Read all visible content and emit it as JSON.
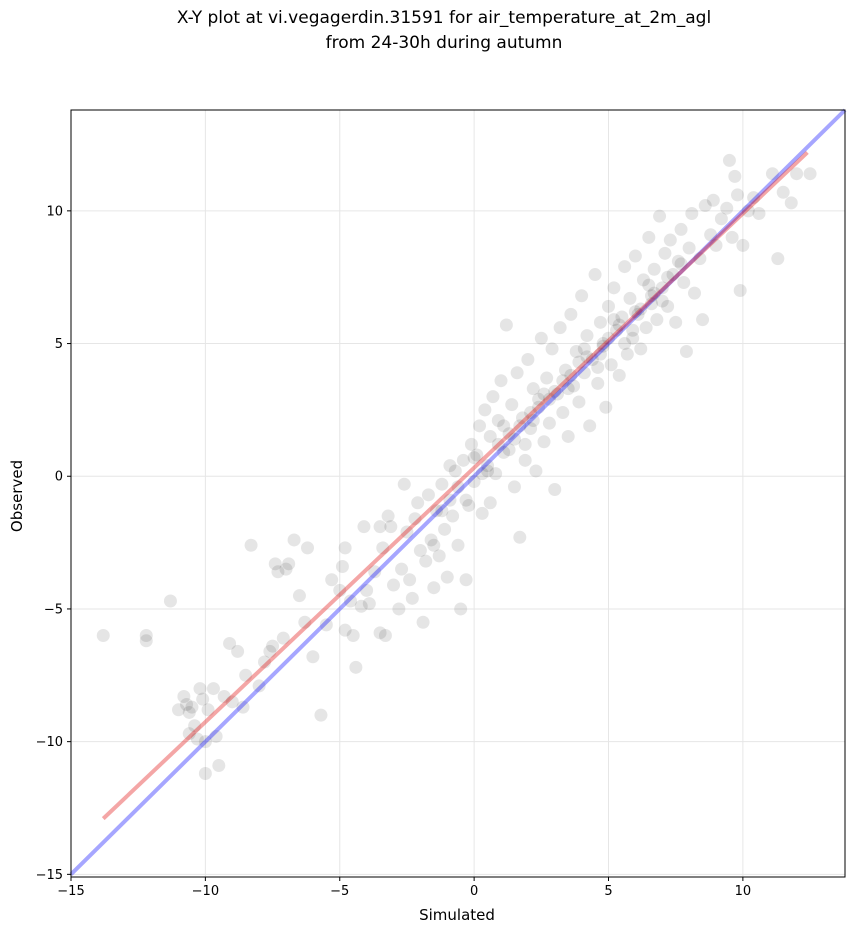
{
  "chart_data": {
    "type": "scatter",
    "title_line1": "X-Y plot at vi.vegagerdin.31591 for air_temperature_at_2m_agl",
    "title_line2": "from 24-30h during autumn",
    "xlabel": "Simulated",
    "ylabel": "Observed",
    "xlim": [
      -15,
      13.8
    ],
    "ylim": [
      -15.1,
      13.8
    ],
    "xticks": [
      -15,
      -10,
      -5,
      0,
      5,
      10
    ],
    "yticks": [
      -15,
      -10,
      -5,
      0,
      5,
      10
    ],
    "xtick_labels": [
      "−15",
      "−10",
      "−5",
      "0",
      "5",
      "10"
    ],
    "ytick_labels": [
      "−15",
      "−10",
      "−5",
      "0",
      "5",
      "10"
    ],
    "grid": true,
    "point_color": "#000000",
    "point_opacity": 0.1,
    "lines": [
      {
        "kind": "one-to-one",
        "color": "#0000ff",
        "opacity": 0.35,
        "x": [
          -15,
          13.8
        ],
        "y": [
          -15,
          13.8
        ]
      },
      {
        "kind": "regression",
        "color": "#e00000",
        "opacity": 0.35,
        "x": [
          -13.8,
          12.4
        ],
        "y": [
          -12.9,
          12.2
        ]
      }
    ],
    "points": [
      [
        -13.8,
        -6.0
      ],
      [
        -12.2,
        -6.0
      ],
      [
        -12.2,
        -6.2
      ],
      [
        -11.3,
        -4.7
      ],
      [
        -11.0,
        -8.8
      ],
      [
        -10.8,
        -8.3
      ],
      [
        -10.7,
        -8.6
      ],
      [
        -10.6,
        -8.9
      ],
      [
        -10.6,
        -9.7
      ],
      [
        -10.4,
        -9.4
      ],
      [
        -10.3,
        -9.9
      ],
      [
        -10.2,
        -8.0
      ],
      [
        -10.1,
        -8.4
      ],
      [
        -10.0,
        -11.2
      ],
      [
        -10.0,
        -10.0
      ],
      [
        -9.9,
        -8.8
      ],
      [
        -10.5,
        -8.7
      ],
      [
        -9.7,
        -8.0
      ],
      [
        -9.6,
        -9.8
      ],
      [
        -9.5,
        -10.9
      ],
      [
        -9.3,
        -8.3
      ],
      [
        -9.1,
        -6.3
      ],
      [
        -9.0,
        -8.5
      ],
      [
        -8.8,
        -6.6
      ],
      [
        -8.6,
        -8.7
      ],
      [
        -8.5,
        -7.5
      ],
      [
        -8.3,
        -2.6
      ],
      [
        -8.0,
        -7.9
      ],
      [
        -7.8,
        -7.0
      ],
      [
        -7.6,
        -6.6
      ],
      [
        -7.5,
        -6.4
      ],
      [
        -7.4,
        -3.3
      ],
      [
        -7.3,
        -3.6
      ],
      [
        -7.1,
        -6.1
      ],
      [
        -7.0,
        -3.5
      ],
      [
        -6.9,
        -3.3
      ],
      [
        -6.7,
        -2.4
      ],
      [
        -6.5,
        -4.5
      ],
      [
        -6.3,
        -5.5
      ],
      [
        -6.2,
        -2.7
      ],
      [
        -6.0,
        -6.8
      ],
      [
        -5.7,
        -9.0
      ],
      [
        -5.5,
        -5.6
      ],
      [
        -5.3,
        -3.9
      ],
      [
        -5.0,
        -4.3
      ],
      [
        -4.9,
        -3.4
      ],
      [
        -4.8,
        -2.7
      ],
      [
        -4.8,
        -5.8
      ],
      [
        -4.6,
        -4.7
      ],
      [
        -4.5,
        -6.0
      ],
      [
        -4.4,
        -7.2
      ],
      [
        -4.2,
        -4.9
      ],
      [
        -4.1,
        -1.9
      ],
      [
        -4.0,
        -4.3
      ],
      [
        -3.9,
        -4.8
      ],
      [
        -3.7,
        -3.6
      ],
      [
        -3.5,
        -5.9
      ],
      [
        -3.4,
        -2.7
      ],
      [
        -3.3,
        -6.0
      ],
      [
        -3.2,
        -1.5
      ],
      [
        -3.1,
        -1.9
      ],
      [
        -3.0,
        -4.1
      ],
      [
        -2.8,
        -5.0
      ],
      [
        -2.7,
        -3.5
      ],
      [
        -2.6,
        -0.3
      ],
      [
        -2.5,
        -2.1
      ],
      [
        -2.4,
        -3.9
      ],
      [
        -2.3,
        -4.6
      ],
      [
        -2.2,
        -1.6
      ],
      [
        -2.0,
        -2.8
      ],
      [
        -1.9,
        -5.5
      ],
      [
        -1.8,
        -3.2
      ],
      [
        -1.7,
        -0.7
      ],
      [
        -1.6,
        -2.4
      ],
      [
        -1.5,
        -4.2
      ],
      [
        -1.4,
        -1.3
      ],
      [
        -1.3,
        -3.0
      ],
      [
        -1.2,
        -0.3
      ],
      [
        -1.1,
        -2.0
      ],
      [
        -1.0,
        -3.8
      ],
      [
        -0.9,
        -0.9
      ],
      [
        -0.8,
        -1.5
      ],
      [
        -0.7,
        0.2
      ],
      [
        -0.6,
        -2.6
      ],
      [
        -0.5,
        -5.0
      ],
      [
        -0.4,
        0.6
      ],
      [
        -0.3,
        -3.9
      ],
      [
        -0.2,
        -1.1
      ],
      [
        -0.1,
        1.2
      ],
      [
        0.0,
        -0.2
      ],
      [
        0.1,
        0.8
      ],
      [
        0.2,
        1.9
      ],
      [
        0.3,
        -1.4
      ],
      [
        0.4,
        2.5
      ],
      [
        0.5,
        0.4
      ],
      [
        0.6,
        1.5
      ],
      [
        0.7,
        3.0
      ],
      [
        0.8,
        0.1
      ],
      [
        0.9,
        2.1
      ],
      [
        1.0,
        3.6
      ],
      [
        1.1,
        0.9
      ],
      [
        1.2,
        5.7
      ],
      [
        1.3,
        1.6
      ],
      [
        1.4,
        2.7
      ],
      [
        1.5,
        -0.4
      ],
      [
        1.6,
        3.9
      ],
      [
        1.7,
        -2.3
      ],
      [
        1.8,
        2.2
      ],
      [
        1.9,
        0.6
      ],
      [
        2.0,
        4.4
      ],
      [
        2.1,
        1.8
      ],
      [
        2.2,
        3.3
      ],
      [
        2.3,
        0.2
      ],
      [
        2.4,
        2.9
      ],
      [
        2.5,
        5.2
      ],
      [
        2.6,
        1.3
      ],
      [
        2.7,
        3.7
      ],
      [
        2.8,
        2.0
      ],
      [
        2.9,
        4.8
      ],
      [
        3.0,
        -0.5
      ],
      [
        3.1,
        3.1
      ],
      [
        3.2,
        5.6
      ],
      [
        3.3,
        2.4
      ],
      [
        3.4,
        4.0
      ],
      [
        3.5,
        1.5
      ],
      [
        3.6,
        6.1
      ],
      [
        3.7,
        3.4
      ],
      [
        3.8,
        4.7
      ],
      [
        3.9,
        2.8
      ],
      [
        4.0,
        6.8
      ],
      [
        4.1,
        3.9
      ],
      [
        4.2,
        5.3
      ],
      [
        4.3,
        1.9
      ],
      [
        4.4,
        4.4
      ],
      [
        4.5,
        7.6
      ],
      [
        4.6,
        3.5
      ],
      [
        4.7,
        5.8
      ],
      [
        4.8,
        4.9
      ],
      [
        4.9,
        2.6
      ],
      [
        5.0,
        6.4
      ],
      [
        5.1,
        4.2
      ],
      [
        5.2,
        7.1
      ],
      [
        5.3,
        5.5
      ],
      [
        5.4,
        3.8
      ],
      [
        5.5,
        6.0
      ],
      [
        5.6,
        7.9
      ],
      [
        5.7,
        4.6
      ],
      [
        5.8,
        6.7
      ],
      [
        5.9,
        5.2
      ],
      [
        6.0,
        8.3
      ],
      [
        6.1,
        6.1
      ],
      [
        6.2,
        4.8
      ],
      [
        6.3,
        7.4
      ],
      [
        6.4,
        5.6
      ],
      [
        6.5,
        9.0
      ],
      [
        6.6,
        6.5
      ],
      [
        6.7,
        7.8
      ],
      [
        6.8,
        5.9
      ],
      [
        6.9,
        9.8
      ],
      [
        7.0,
        7.1
      ],
      [
        7.1,
        8.4
      ],
      [
        7.2,
        6.4
      ],
      [
        7.3,
        8.9
      ],
      [
        7.4,
        7.6
      ],
      [
        7.5,
        5.8
      ],
      [
        7.6,
        8.1
      ],
      [
        7.7,
        9.3
      ],
      [
        7.8,
        7.3
      ],
      [
        7.9,
        4.7
      ],
      [
        8.0,
        8.6
      ],
      [
        8.1,
        9.9
      ],
      [
        8.2,
        6.9
      ],
      [
        8.4,
        8.2
      ],
      [
        8.5,
        5.9
      ],
      [
        8.6,
        10.2
      ],
      [
        8.8,
        9.1
      ],
      [
        8.9,
        10.4
      ],
      [
        9.0,
        8.7
      ],
      [
        9.2,
        9.7
      ],
      [
        9.4,
        10.1
      ],
      [
        9.5,
        11.9
      ],
      [
        9.6,
        9.0
      ],
      [
        9.7,
        11.3
      ],
      [
        9.8,
        10.6
      ],
      [
        9.9,
        7.0
      ],
      [
        10.0,
        8.7
      ],
      [
        10.2,
        10.0
      ],
      [
        10.4,
        10.5
      ],
      [
        10.6,
        9.9
      ],
      [
        11.1,
        11.4
      ],
      [
        11.3,
        8.2
      ],
      [
        11.5,
        10.7
      ],
      [
        11.8,
        10.3
      ],
      [
        12.0,
        11.4
      ],
      [
        12.5,
        11.4
      ],
      [
        -3.5,
        -1.9
      ],
      [
        -2.1,
        -1.0
      ],
      [
        -1.5,
        -2.6
      ],
      [
        -0.3,
        -0.9
      ],
      [
        0.6,
        -1.0
      ],
      [
        1.1,
        1.9
      ],
      [
        1.9,
        1.2
      ],
      [
        2.6,
        3.1
      ],
      [
        3.3,
        3.6
      ],
      [
        3.9,
        4.3
      ],
      [
        4.6,
        4.1
      ],
      [
        5.0,
        5.2
      ],
      [
        5.6,
        5.0
      ],
      [
        6.2,
        6.3
      ],
      [
        6.7,
        6.9
      ],
      [
        7.2,
        7.5
      ],
      [
        7.7,
        8.0
      ],
      [
        -0.9,
        0.4
      ],
      [
        0.0,
        0.7
      ],
      [
        0.9,
        1.2
      ],
      [
        1.7,
        1.9
      ],
      [
        2.4,
        2.6
      ],
      [
        3.0,
        3.2
      ],
      [
        3.6,
        3.8
      ],
      [
        4.2,
        4.5
      ],
      [
        4.8,
        5.0
      ],
      [
        5.4,
        5.7
      ],
      [
        6.0,
        6.2
      ],
      [
        6.6,
        6.8
      ],
      [
        0.3,
        0.1
      ],
      [
        1.3,
        1.0
      ],
      [
        2.1,
        2.4
      ],
      [
        2.8,
        2.9
      ],
      [
        3.5,
        3.3
      ],
      [
        4.1,
        4.8
      ],
      [
        4.7,
        4.6
      ],
      [
        5.2,
        5.9
      ],
      [
        5.9,
        5.5
      ],
      [
        6.5,
        7.2
      ],
      [
        7.0,
        6.6
      ],
      [
        -1.2,
        -1.3
      ],
      [
        -0.6,
        -0.4
      ],
      [
        0.5,
        0.2
      ],
      [
        1.5,
        1.4
      ],
      [
        2.2,
        2.1
      ]
    ]
  }
}
